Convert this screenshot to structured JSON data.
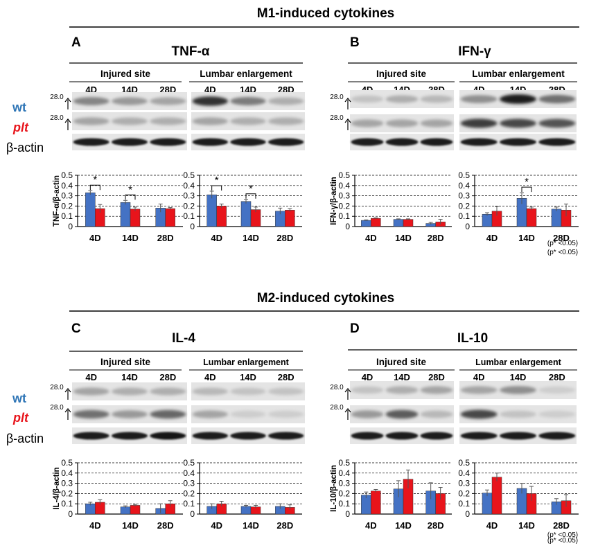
{
  "figure": {
    "section_m1_title": "M1-induced cytokines",
    "section_m2_title": "M2-induced cytokines",
    "row_labels": {
      "wt": "wt",
      "plt": "plt",
      "actin": "β-actin"
    },
    "marker": "28.0",
    "site_labels": [
      "Injured site",
      "Lumbar enlargement"
    ],
    "timepoints": [
      "4D",
      "14D",
      "28D"
    ],
    "significance_note": "(p* <0.05)",
    "star": "*",
    "colors": {
      "wt": "#4472C4",
      "plt": "#E8141B",
      "wt_label": "#2E75B6",
      "plt_label": "#E8141B"
    }
  },
  "chart_data": [
    {
      "type": "bar",
      "panel": "A",
      "title": "TNF-α",
      "ylabel": "TNF-α/β-actin",
      "ylim": [
        0,
        0.5
      ],
      "yticks": [
        "0",
        "0.1",
        "0.2",
        "0.3",
        "0.4",
        "0.5"
      ],
      "grid": true,
      "groups": [
        {
          "name": "Injured site",
          "categories": [
            "4D",
            "14D",
            "28D"
          ],
          "series": [
            {
              "name": "wt",
              "values": [
                0.33,
                0.235,
                0.18
              ],
              "errors": [
                0.02,
                0.02,
                0.04
              ]
            },
            {
              "name": "plt",
              "values": [
                0.175,
                0.17,
                0.175
              ],
              "errors": [
                0.04,
                0.02,
                0.01
              ]
            }
          ],
          "significant": [
            0,
            1
          ]
        },
        {
          "name": "Lumbar enlargement",
          "categories": [
            "4D",
            "14D",
            "28D"
          ],
          "series": [
            {
              "name": "wt",
              "values": [
                0.31,
                0.245,
                0.15
              ],
              "errors": [
                0.035,
                0.02,
                0.03
              ]
            },
            {
              "name": "plt",
              "values": [
                0.2,
                0.165,
                0.16
              ],
              "errors": [
                0.02,
                0.025,
                0.015
              ]
            }
          ],
          "significant": [
            0,
            1
          ]
        }
      ]
    },
    {
      "type": "bar",
      "panel": "B",
      "title": "IFN-γ",
      "ylabel": "IFN-γ/β-actin",
      "ylim": [
        0,
        0.5
      ],
      "yticks": [
        "0",
        "0.1",
        "0.2",
        "0.3",
        "0.4",
        "0.5"
      ],
      "grid": true,
      "groups": [
        {
          "name": "Injured site",
          "categories": [
            "4D",
            "14D",
            "28D"
          ],
          "series": [
            {
              "name": "wt",
              "values": [
                0.06,
                0.07,
                0.03
              ],
              "errors": [
                0.005,
                0.005,
                0.01
              ]
            },
            {
              "name": "plt",
              "values": [
                0.08,
                0.07,
                0.045
              ],
              "errors": [
                0.005,
                0.005,
                0.025
              ]
            }
          ],
          "significant": []
        },
        {
          "name": "Lumbar enlargement",
          "categories": [
            "4D",
            "14D",
            "28D"
          ],
          "series": [
            {
              "name": "wt",
              "values": [
                0.12,
                0.275,
                0.17
              ],
              "errors": [
                0.015,
                0.055,
                0.02
              ]
            },
            {
              "name": "plt",
              "values": [
                0.15,
                0.175,
                0.16
              ],
              "errors": [
                0.045,
                0.015,
                0.06
              ]
            }
          ],
          "significant": [
            1
          ]
        }
      ]
    },
    {
      "type": "bar",
      "panel": "C",
      "title": "IL-4",
      "ylabel": "IL-4/β-actin",
      "ylim": [
        0,
        0.5
      ],
      "yticks": [
        "0",
        "0.1",
        "0.2",
        "0.3",
        "0.4",
        "0.5"
      ],
      "grid": true,
      "groups": [
        {
          "name": "Injured site",
          "categories": [
            "4D",
            "14D",
            "28D"
          ],
          "series": [
            {
              "name": "wt",
              "values": [
                0.1,
                0.07,
                0.055
              ],
              "errors": [
                0.015,
                0.01,
                0.045
              ]
            },
            {
              "name": "plt",
              "values": [
                0.115,
                0.085,
                0.1
              ],
              "errors": [
                0.025,
                0.01,
                0.03
              ]
            }
          ],
          "significant": []
        },
        {
          "name": "Lumbar enlargement",
          "categories": [
            "4D",
            "14D",
            "28D"
          ],
          "series": [
            {
              "name": "wt",
              "values": [
                0.075,
                0.075,
                0.075
              ],
              "errors": [
                0.025,
                0.01,
                0.025
              ]
            },
            {
              "name": "plt",
              "values": [
                0.1,
                0.07,
                0.065
              ],
              "errors": [
                0.025,
                0.015,
                0.025
              ]
            }
          ],
          "significant": []
        }
      ]
    },
    {
      "type": "bar",
      "panel": "D",
      "title": "IL-10",
      "ylabel": "IL-10/β-actin",
      "ylim": [
        0,
        0.5
      ],
      "yticks": [
        "0",
        "0.1",
        "0.2",
        "0.3",
        "0.4",
        "0.5"
      ],
      "grid": true,
      "groups": [
        {
          "name": "Injured site",
          "categories": [
            "4D",
            "14D",
            "28D"
          ],
          "series": [
            {
              "name": "wt",
              "values": [
                0.185,
                0.245,
                0.225
              ],
              "errors": [
                0.03,
                0.08,
                0.08
              ]
            },
            {
              "name": "plt",
              "values": [
                0.225,
                0.34,
                0.2
              ],
              "errors": [
                0.015,
                0.09,
                0.06
              ]
            }
          ],
          "significant": []
        },
        {
          "name": "Lumbar enlargement",
          "categories": [
            "4D",
            "14D",
            "28D"
          ],
          "series": [
            {
              "name": "wt",
              "values": [
                0.205,
                0.25,
                0.12
              ],
              "errors": [
                0.03,
                0.05,
                0.03
              ]
            },
            {
              "name": "plt",
              "values": [
                0.36,
                0.2,
                0.13
              ],
              "errors": [
                0.04,
                0.07,
                0.06
              ]
            }
          ],
          "significant": []
        }
      ]
    }
  ]
}
